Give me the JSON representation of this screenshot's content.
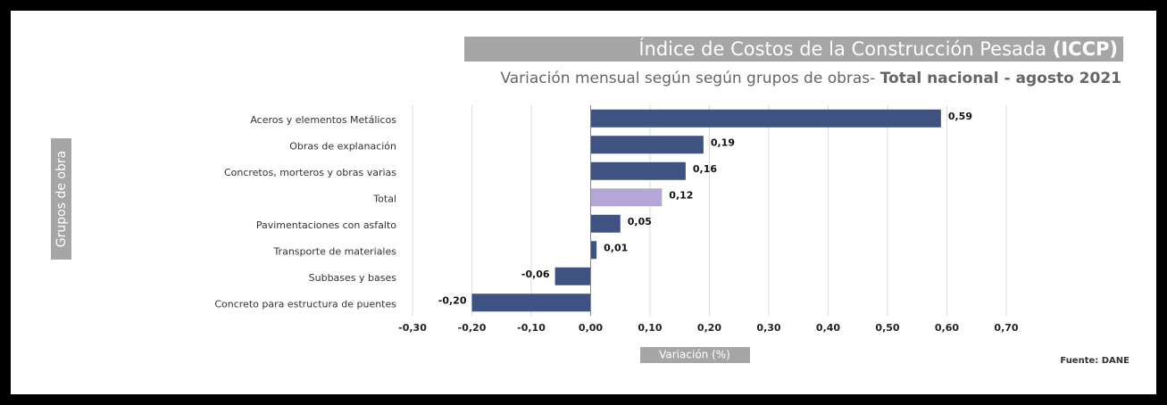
{
  "chart_data": {
    "type": "barh",
    "title": [
      "Índice de Costos de la Construcción Pesada",
      "(ICCP)"
    ],
    "subtitle": [
      "Variación mensual según según grupos de obras-",
      "Total nacional - agosto 2021"
    ],
    "y_label": "Grupos de obra",
    "x_label": "Variación (%)",
    "source": "Fuente: DANE",
    "categories": [
      "Aceros y elementos Metálicos",
      "Obras de explanación",
      "Concretos, morteros y obras varias",
      "Total",
      "Pavimentaciones con asfalto",
      "Transporte de materiales",
      "Subbases y bases",
      "Concreto para estructura de puentes"
    ],
    "values": [
      0.59,
      0.19,
      0.16,
      0.12,
      0.05,
      0.01,
      -0.06,
      -0.2
    ],
    "value_labels": [
      "0,59",
      "0,19",
      "0,16",
      "0,12",
      "0,05",
      "0,01",
      "-0,06",
      "-0,20"
    ],
    "colors": [
      "#3f5382",
      "#3f5382",
      "#3f5382",
      "#b4a7d6",
      "#3f5382",
      "#3f5382",
      "#3f5382",
      "#3f5382"
    ],
    "xlim": [
      -0.3,
      0.7
    ],
    "xticks": [
      {
        "value": -0.3,
        "label": "-0,30"
      },
      {
        "value": -0.2,
        "label": "-0,20"
      },
      {
        "value": -0.1,
        "label": "-0,10"
      },
      {
        "value": 0,
        "label": "0,00"
      },
      {
        "value": 0.1,
        "label": "0,10"
      },
      {
        "value": 0.2,
        "label": "0,20"
      },
      {
        "value": 0.3,
        "label": "0,30"
      },
      {
        "value": 0.4,
        "label": "0,40"
      },
      {
        "value": 0.5,
        "label": "0,50"
      },
      {
        "value": 0.6,
        "label": "0,60"
      },
      {
        "value": 0.7,
        "label": "0,70"
      }
    ],
    "grid": true
  }
}
